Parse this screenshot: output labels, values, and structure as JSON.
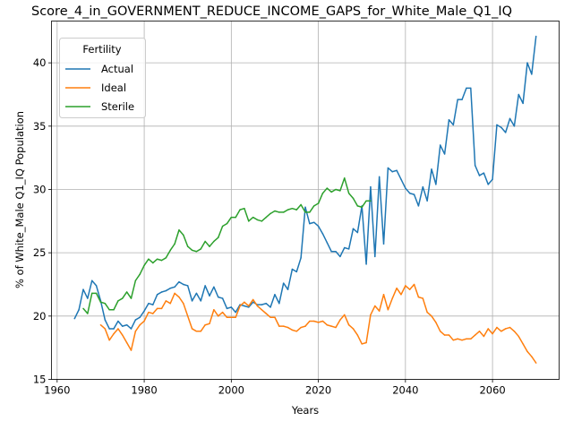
{
  "chart_data": {
    "type": "line",
    "title": "Score_4_in_GOVERNMENT_REDUCE_INCOME_GAPS_for_White_Male_Q1_IQ",
    "xlabel": "Years",
    "ylabel": "% of White_Male Q1_IQ Population",
    "xlim": [
      1958.7,
      2075.3
    ],
    "ylim": [
      15,
      43.3
    ],
    "xticks": [
      1960,
      1980,
      2000,
      2020,
      2040,
      2060
    ],
    "yticks": [
      15,
      20,
      25,
      30,
      35,
      40
    ],
    "grid": true,
    "legend": {
      "title": "Fertility",
      "placement": "top-left"
    },
    "series": [
      {
        "name": "Actual",
        "color": "#1f77b4",
        "x": [
          1964,
          1965,
          1966,
          1967,
          1968,
          1969,
          1970,
          1971,
          1972,
          1973,
          1974,
          1975,
          1976,
          1977,
          1978,
          1979,
          1980,
          1981,
          1982,
          1983,
          1984,
          1985,
          1986,
          1987,
          1988,
          1989,
          1990,
          1991,
          1992,
          1993,
          1994,
          1995,
          1996,
          1997,
          1998,
          1999,
          2000,
          2001,
          2002,
          2003,
          2004,
          2005,
          2006,
          2007,
          2008,
          2009,
          2010,
          2011,
          2012,
          2013,
          2014,
          2015,
          2016,
          2017,
          2018,
          2019,
          2020,
          2021,
          2022,
          2023,
          2024,
          2025,
          2026,
          2027,
          2028,
          2029,
          2030,
          2031,
          2032,
          2033,
          2034,
          2035,
          2036,
          2037,
          2038,
          2039,
          2040,
          2041,
          2042,
          2043,
          2044,
          2045,
          2046,
          2047,
          2048,
          2049,
          2050,
          2051,
          2052,
          2053,
          2054,
          2055,
          2056,
          2057,
          2058,
          2059,
          2060,
          2061,
          2062,
          2063,
          2064,
          2065,
          2066,
          2067,
          2068,
          2069,
          2070
        ],
        "values": [
          19.8,
          20.5,
          22.1,
          21.4,
          22.8,
          22.4,
          21.2,
          19.7,
          19.0,
          19.0,
          19.6,
          19.2,
          19.3,
          19.0,
          19.7,
          19.9,
          20.4,
          21.0,
          20.9,
          21.7,
          21.9,
          22.0,
          22.2,
          22.3,
          22.7,
          22.5,
          22.4,
          21.2,
          21.8,
          21.2,
          22.4,
          21.6,
          22.3,
          21.5,
          21.4,
          20.6,
          20.7,
          20.3,
          20.9,
          20.8,
          20.7,
          21.1,
          20.9,
          20.9,
          21.0,
          20.7,
          21.7,
          21.0,
          22.6,
          22.1,
          23.7,
          23.5,
          24.6,
          28.6,
          27.3,
          27.4,
          27.1,
          26.5,
          25.8,
          25.1,
          25.1,
          24.7,
          25.4,
          25.3,
          26.9,
          26.6,
          28.7,
          24.1,
          30.2,
          24.7,
          31.0,
          25.7,
          31.7,
          31.4,
          31.5,
          30.8,
          30.1,
          29.7,
          29.6,
          28.7,
          30.2,
          29.1,
          31.6,
          30.4,
          33.5,
          32.8,
          35.5,
          35.1,
          37.1,
          37.1,
          38.0,
          38.0,
          31.9,
          31.1,
          31.3,
          30.4,
          30.8,
          35.1,
          34.9,
          34.5,
          35.6,
          35.0,
          37.5,
          36.8,
          40.0,
          39.1,
          42.1
        ]
      },
      {
        "name": "Ideal",
        "color": "#ff7f0e",
        "x": [
          1970,
          1971,
          1972,
          1973,
          1974,
          1975,
          1976,
          1977,
          1978,
          1979,
          1980,
          1981,
          1982,
          1983,
          1984,
          1985,
          1986,
          1987,
          1988,
          1989,
          1990,
          1991,
          1992,
          1993,
          1994,
          1995,
          1996,
          1997,
          1998,
          1999,
          2000,
          2001,
          2002,
          2003,
          2004,
          2005,
          2006,
          2007,
          2008,
          2009,
          2010,
          2011,
          2012,
          2013,
          2014,
          2015,
          2016,
          2017,
          2018,
          2019,
          2020,
          2021,
          2022,
          2023,
          2024,
          2025,
          2026,
          2027,
          2028,
          2029,
          2030,
          2031,
          2032,
          2033,
          2034,
          2035,
          2036,
          2037,
          2038,
          2039,
          2040,
          2041,
          2042,
          2043,
          2044,
          2045,
          2046,
          2047,
          2048,
          2049,
          2050,
          2051,
          2052,
          2053,
          2054,
          2055,
          2056,
          2057,
          2058,
          2059,
          2060,
          2061,
          2062,
          2063,
          2064,
          2065,
          2066,
          2067,
          2068,
          2069,
          2070
        ],
        "values": [
          19.3,
          19.0,
          18.1,
          18.6,
          19.0,
          18.5,
          17.9,
          17.3,
          18.8,
          19.3,
          19.6,
          20.3,
          20.2,
          20.6,
          20.6,
          21.2,
          21.0,
          21.8,
          21.5,
          21.0,
          20.0,
          19.0,
          18.8,
          18.8,
          19.3,
          19.4,
          20.5,
          20.0,
          20.3,
          19.9,
          19.9,
          19.9,
          20.8,
          21.1,
          20.8,
          21.3,
          20.8,
          20.5,
          20.2,
          19.9,
          19.9,
          19.2,
          19.2,
          19.1,
          18.9,
          18.8,
          19.1,
          19.2,
          19.6,
          19.6,
          19.5,
          19.6,
          19.3,
          19.2,
          19.1,
          19.7,
          20.1,
          19.3,
          19.0,
          18.5,
          17.8,
          17.9,
          20.1,
          20.8,
          20.4,
          21.7,
          20.5,
          21.4,
          22.2,
          21.7,
          22.4,
          22.1,
          22.5,
          21.5,
          21.4,
          20.3,
          20.0,
          19.5,
          18.8,
          18.5,
          18.5,
          18.1,
          18.2,
          18.1,
          18.2,
          18.2,
          18.5,
          18.8,
          18.4,
          19.0,
          18.6,
          19.1,
          18.8,
          19.0,
          19.1,
          18.8,
          18.4,
          17.8,
          17.2,
          16.8,
          16.3
        ]
      },
      {
        "name": "Sterile",
        "color": "#2ca02c",
        "x": [
          1966,
          1967,
          1968,
          1969,
          1970,
          1971,
          1972,
          1973,
          1974,
          1975,
          1976,
          1977,
          1978,
          1979,
          1980,
          1981,
          1982,
          1983,
          1984,
          1985,
          1986,
          1987,
          1988,
          1989,
          1990,
          1991,
          1992,
          1993,
          1994,
          1995,
          1996,
          1997,
          1998,
          1999,
          2000,
          2001,
          2002,
          2003,
          2004,
          2005,
          2006,
          2007,
          2008,
          2009,
          2010,
          2011,
          2012,
          2013,
          2014,
          2015,
          2016,
          2017,
          2018,
          2019,
          2020,
          2021,
          2022,
          2023,
          2024,
          2025,
          2026,
          2027,
          2028,
          2029,
          2030,
          2031,
          2032
        ],
        "values": [
          20.6,
          20.2,
          21.8,
          21.8,
          21.1,
          21.0,
          20.5,
          20.5,
          21.2,
          21.4,
          21.9,
          21.4,
          22.8,
          23.3,
          24.0,
          24.5,
          24.2,
          24.5,
          24.4,
          24.6,
          25.2,
          25.7,
          26.8,
          26.4,
          25.5,
          25.2,
          25.1,
          25.3,
          25.9,
          25.5,
          25.9,
          26.2,
          27.1,
          27.3,
          27.8,
          27.8,
          28.4,
          28.5,
          27.5,
          27.8,
          27.6,
          27.5,
          27.8,
          28.1,
          28.3,
          28.2,
          28.2,
          28.4,
          28.5,
          28.4,
          28.8,
          28.2,
          28.2,
          28.7,
          28.9,
          29.7,
          30.1,
          29.8,
          30.0,
          29.9,
          30.9,
          29.7,
          29.3,
          28.7,
          28.6,
          29.1,
          29.1
        ]
      }
    ]
  }
}
